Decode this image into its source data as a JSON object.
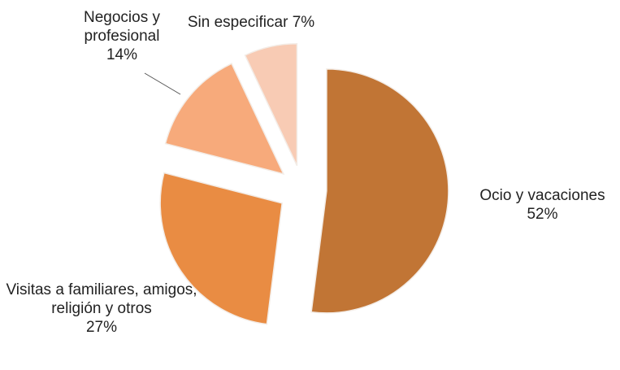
{
  "chart_data": {
    "type": "pie",
    "categories": [
      "Ocio y vacaciones",
      "Visitas a familiares, amigos, religión y otros",
      "Negocios y profesional",
      "Sin especificar"
    ],
    "values": [
      52,
      27,
      14,
      7
    ],
    "value_labels": [
      "52%",
      "27%",
      "14%",
      "7%"
    ],
    "colors": [
      "#c17535",
      "#e98c43",
      "#f7aa7b",
      "#f8cbb4"
    ]
  }
}
